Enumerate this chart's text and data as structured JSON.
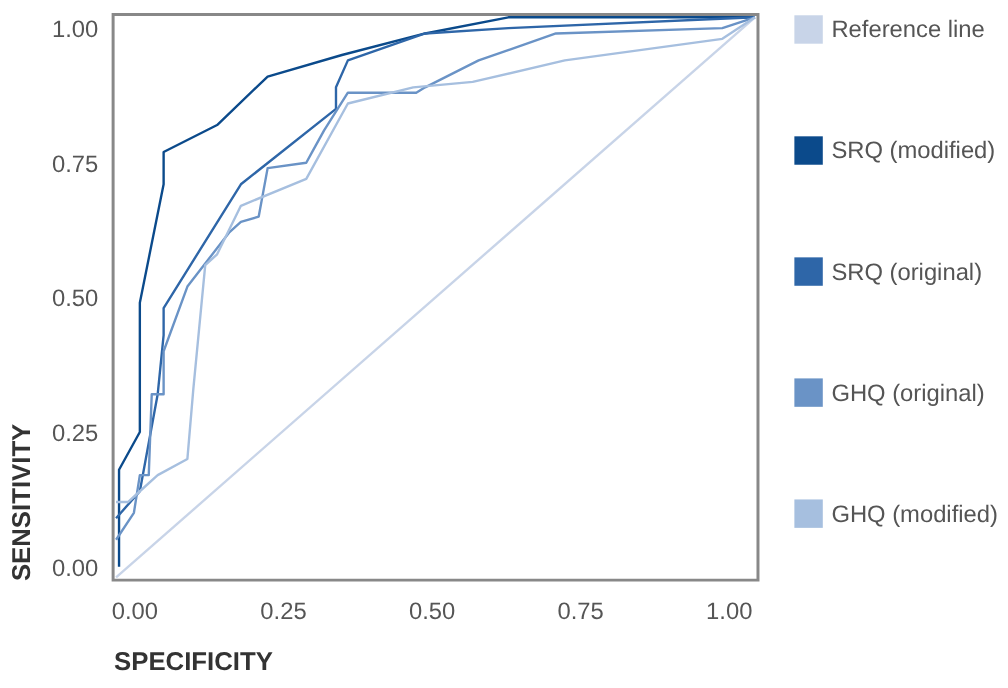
{
  "chart_data": {
    "type": "line",
    "xlabel": "SPECIFICITY",
    "ylabel": "SENSITIVITY",
    "xlim": [
      -0.035,
      1.05
    ],
    "ylim": [
      -0.025,
      1.025
    ],
    "xticks": [
      {
        "value": 0,
        "label": "0.00"
      },
      {
        "value": 0.25,
        "label": "0.25"
      },
      {
        "value": 0.5,
        "label": "0.50"
      },
      {
        "value": 0.75,
        "label": "0.75"
      },
      {
        "value": 1,
        "label": "1.00"
      }
    ],
    "yticks": [
      {
        "value": 0,
        "label": "0.00"
      },
      {
        "value": 0.25,
        "label": "0.25"
      },
      {
        "value": 0.5,
        "label": "0.50"
      },
      {
        "value": 0.75,
        "label": "0.75"
      },
      {
        "value": 1,
        "label": "1.00"
      }
    ],
    "grid": false,
    "legend": "top right",
    "marker": "none",
    "line_style": "solid",
    "series": [
      {
        "name": "Reference line",
        "color": "#c8d4e8",
        "x": [
          -0.03,
          1.045
        ],
        "values": [
          -0.02,
          1.02
        ]
      },
      {
        "name": "SRQ (modified)",
        "color": "#0b4a8b",
        "x": [
          -0.025,
          -0.025,
          0.01,
          0.01,
          0.05,
          0.05,
          0.14,
          0.225,
          0.35,
          0.49,
          0.63,
          1.045
        ],
        "values": [
          0.0,
          0.18,
          0.25,
          0.49,
          0.71,
          0.77,
          0.82,
          0.91,
          0.95,
          0.99,
          1.02,
          1.02
        ]
      },
      {
        "name": "SRQ (original)",
        "color": "#2e66a8",
        "x": [
          -0.03,
          0.01,
          0.04,
          0.05,
          0.05,
          0.18,
          0.34,
          0.34,
          0.36,
          0.49,
          0.63,
          1.045
        ],
        "values": [
          0.09,
          0.14,
          0.32,
          0.43,
          0.48,
          0.71,
          0.85,
          0.89,
          0.94,
          0.99,
          1.0,
          1.02
        ]
      },
      {
        "name": "GHQ (original)",
        "color": "#6a93c6",
        "x": [
          -0.03,
          0.0,
          0.01,
          0.025,
          0.03,
          0.05,
          0.05,
          0.09,
          0.16,
          0.18,
          0.21,
          0.225,
          0.29,
          0.3,
          0.32,
          0.36,
          0.475,
          0.49,
          0.58,
          0.71,
          0.99,
          1.045
        ],
        "values": [
          0.05,
          0.1,
          0.17,
          0.17,
          0.32,
          0.32,
          0.4,
          0.52,
          0.62,
          0.64,
          0.65,
          0.74,
          0.75,
          0.77,
          0.81,
          0.88,
          0.88,
          0.89,
          0.94,
          0.99,
          1.0,
          1.02
        ]
      },
      {
        "name": "GHQ (modified)",
        "color": "#a6bfdf",
        "x": [
          -0.03,
          -0.01,
          0.01,
          0.04,
          0.09,
          0.1,
          0.12,
          0.14,
          0.18,
          0.29,
          0.36,
          0.47,
          0.57,
          0.725,
          0.99,
          1.045
        ],
        "values": [
          0.12,
          0.12,
          0.14,
          0.17,
          0.2,
          0.33,
          0.56,
          0.58,
          0.67,
          0.72,
          0.86,
          0.89,
          0.9,
          0.94,
          0.98,
          1.02
        ]
      }
    ]
  }
}
